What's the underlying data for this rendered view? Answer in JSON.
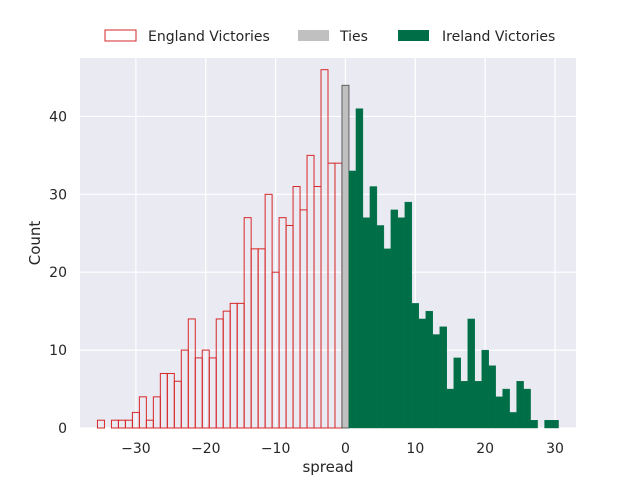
{
  "chart_data": {
    "type": "bar",
    "xlabel": "spread",
    "ylabel": "Count",
    "xlim": [
      -38,
      33
    ],
    "ylim": [
      0,
      47.5
    ],
    "xticks": [
      -30,
      -20,
      -10,
      0,
      10,
      20,
      30
    ],
    "yticks": [
      0,
      10,
      20,
      30,
      40
    ],
    "grid": true,
    "legend_position": "top",
    "series": [
      {
        "name": "England Victories",
        "color": "#d62728",
        "style": "step-outline",
        "x": [
          -35,
          -34,
          -33,
          -32,
          -31,
          -30,
          -29,
          -28,
          -27,
          -26,
          -25,
          -24,
          -23,
          -22,
          -21,
          -20,
          -19,
          -18,
          -17,
          -16,
          -15,
          -14,
          -13,
          -12,
          -11,
          -10,
          -9,
          -8,
          -7,
          -6,
          -5,
          -4,
          -3,
          -2,
          -1
        ],
        "values": [
          1,
          0,
          1,
          1,
          1,
          2,
          4,
          1,
          4,
          7,
          7,
          6,
          10,
          14,
          9,
          10,
          9,
          14,
          15,
          16,
          16,
          27,
          23,
          23,
          30,
          20,
          27,
          26,
          31,
          28,
          35,
          31,
          46,
          34,
          34
        ]
      },
      {
        "name": "Ties",
        "color": "#c0c0c0",
        "style": "filled",
        "x": [
          0
        ],
        "values": [
          44
        ]
      },
      {
        "name": "Ireland Victories",
        "color": "#006f47",
        "style": "filled",
        "x": [
          1,
          2,
          3,
          4,
          5,
          6,
          7,
          8,
          9,
          10,
          11,
          12,
          13,
          14,
          15,
          16,
          17,
          18,
          19,
          20,
          21,
          22,
          23,
          24,
          25,
          26,
          27,
          28,
          29,
          30
        ],
        "values": [
          33,
          41,
          27,
          31,
          26,
          23,
          28,
          27,
          29,
          16,
          14,
          15,
          12,
          13,
          5,
          9,
          6,
          14,
          6,
          10,
          8,
          4,
          5,
          2,
          6,
          5,
          1,
          0,
          1,
          1
        ]
      }
    ]
  }
}
